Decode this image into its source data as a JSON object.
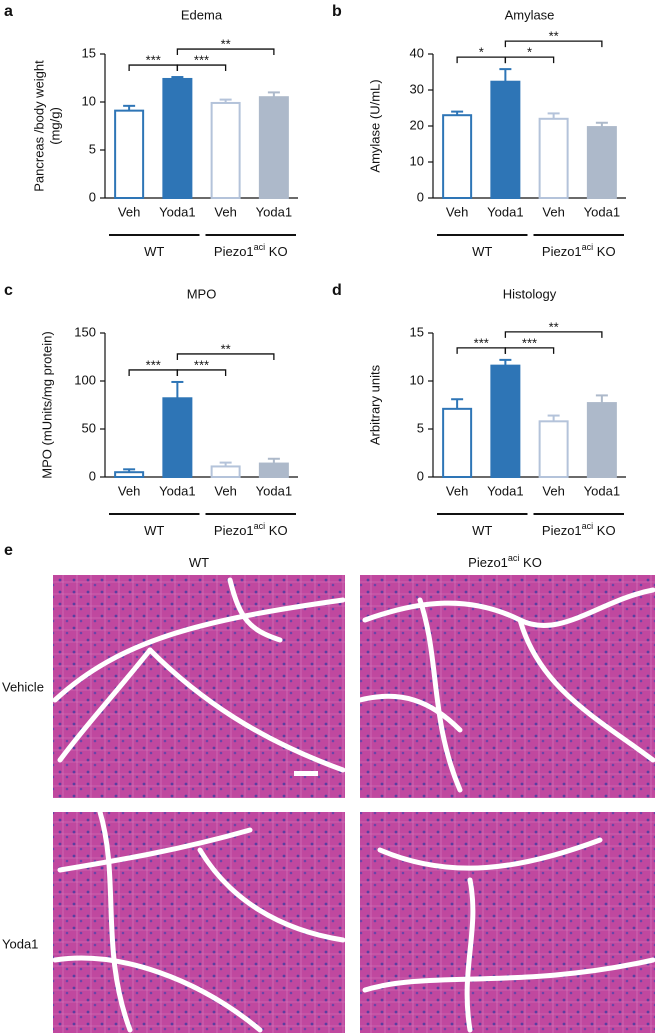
{
  "chart_data": [
    {
      "type": "bar",
      "panel": "a",
      "title": "Edema",
      "ylabel": [
        "Pancreas /body weight",
        "(mg/g)"
      ],
      "categories": [
        "Veh",
        "Yoda1",
        "Veh",
        "Yoda1"
      ],
      "values": [
        9.1,
        12.4,
        9.9,
        10.5
      ],
      "errors": [
        0.5,
        0.2,
        0.35,
        0.5
      ],
      "fills": [
        "#ffffff",
        "#2e75b6",
        "#ffffff",
        "#adb9ca"
      ],
      "edges": [
        "#2e75b6",
        "#2e75b6",
        "#b4c3da",
        "#adb9ca"
      ],
      "ylim": [
        0,
        15
      ],
      "yticks": [
        0,
        5,
        10,
        15
      ],
      "groups": [
        {
          "text": "WT",
          "span": [
            0,
            1
          ]
        },
        {
          "text": "Piezo1",
          "superscript": "aci",
          "suffix": " KO",
          "span": [
            2,
            3
          ]
        }
      ],
      "brackets": [
        {
          "from": 0,
          "to": 1,
          "label": "***"
        },
        {
          "from": 1,
          "to": 2,
          "label": "***"
        },
        {
          "from": 1,
          "to": 3,
          "label": "**"
        }
      ]
    },
    {
      "type": "bar",
      "panel": "b",
      "title": "Amylase",
      "ylabel": [
        "Amylase (U/mL)"
      ],
      "categories": [
        "Veh",
        "Yoda1",
        "Veh",
        "Yoda1"
      ],
      "values": [
        23,
        32.3,
        22,
        19.7
      ],
      "errors": [
        1,
        3.5,
        1.5,
        1.2
      ],
      "fills": [
        "#ffffff",
        "#2e75b6",
        "#ffffff",
        "#adb9ca"
      ],
      "edges": [
        "#2e75b6",
        "#2e75b6",
        "#b4c3da",
        "#adb9ca"
      ],
      "ylim": [
        0,
        40
      ],
      "yticks": [
        0,
        10,
        20,
        30,
        40
      ],
      "groups": [
        {
          "text": "WT",
          "span": [
            0,
            1
          ]
        },
        {
          "text": "Piezo1",
          "superscript": "aci",
          "suffix": " KO",
          "span": [
            2,
            3
          ]
        }
      ],
      "brackets": [
        {
          "from": 0,
          "to": 1,
          "label": "*"
        },
        {
          "from": 1,
          "to": 2,
          "label": "*"
        },
        {
          "from": 1,
          "to": 3,
          "label": "**"
        }
      ]
    },
    {
      "type": "bar",
      "panel": "c",
      "title": "MPO",
      "ylabel": [
        "MPO (mUnits/mg protein)"
      ],
      "categories": [
        "Veh",
        "Yoda1",
        "Veh",
        "Yoda1"
      ],
      "values": [
        5,
        82,
        11,
        14
      ],
      "errors": [
        3,
        17,
        4,
        5
      ],
      "fills": [
        "#ffffff",
        "#2e75b6",
        "#ffffff",
        "#adb9ca"
      ],
      "edges": [
        "#2e75b6",
        "#2e75b6",
        "#b4c3da",
        "#adb9ca"
      ],
      "ylim": [
        0,
        150
      ],
      "yticks": [
        0,
        50,
        100,
        150
      ],
      "groups": [
        {
          "text": "WT",
          "span": [
            0,
            1
          ]
        },
        {
          "text": "Piezo1",
          "superscript": "aci",
          "suffix": " KO",
          "span": [
            2,
            3
          ]
        }
      ],
      "brackets": [
        {
          "from": 0,
          "to": 1,
          "label": "***"
        },
        {
          "from": 1,
          "to": 2,
          "label": "***"
        },
        {
          "from": 1,
          "to": 3,
          "label": "**"
        }
      ]
    },
    {
      "type": "bar",
      "panel": "d",
      "title": "Histology",
      "ylabel": [
        "Arbitrary units"
      ],
      "categories": [
        "Veh",
        "Yoda1",
        "Veh",
        "Yoda1"
      ],
      "values": [
        7.1,
        11.6,
        5.8,
        7.7
      ],
      "errors": [
        1,
        0.6,
        0.6,
        0.8
      ],
      "fills": [
        "#ffffff",
        "#2e75b6",
        "#ffffff",
        "#adb9ca"
      ],
      "edges": [
        "#2e75b6",
        "#2e75b6",
        "#b4c3da",
        "#adb9ca"
      ],
      "ylim": [
        0,
        15
      ],
      "yticks": [
        0,
        5,
        10,
        15
      ],
      "groups": [
        {
          "text": "WT",
          "span": [
            0,
            1
          ]
        },
        {
          "text": "Piezo1",
          "superscript": "aci",
          "suffix": " KO",
          "span": [
            2,
            3
          ]
        }
      ],
      "brackets": [
        {
          "from": 0,
          "to": 1,
          "label": "***"
        },
        {
          "from": 1,
          "to": 2,
          "label": "***"
        },
        {
          "from": 1,
          "to": 3,
          "label": "**"
        }
      ]
    }
  ],
  "panel_e": {
    "label": "e",
    "columns": [
      {
        "text": "WT"
      },
      {
        "text": "Piezo1",
        "superscript": "aci",
        "suffix": " KO"
      }
    ],
    "rows": [
      "Vehicle",
      "Yoda1"
    ]
  }
}
